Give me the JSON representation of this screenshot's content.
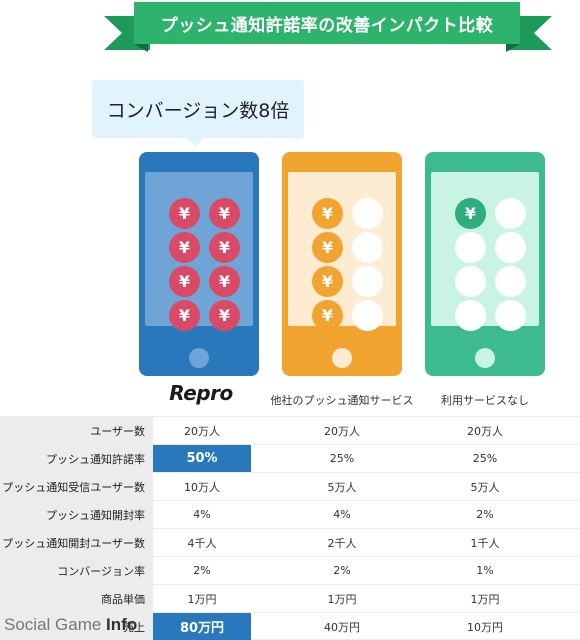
{
  "title": "プッシュ通知許諾率の改善インパクト比較",
  "bubble": "コンバージョン数8倍",
  "coin_symbol": "¥",
  "phones": [
    {
      "label": "Repro",
      "color": "#2a78bc",
      "yen_coins": 8,
      "empty_coins": 0
    },
    {
      "label": "他社のプッシュ通知サービス",
      "color": "#f2a431",
      "yen_coins": 4,
      "empty_coins": 4
    },
    {
      "label": "利用サービスなし",
      "color": "#3dbb8e",
      "yen_coins": 1,
      "empty_coins": 7
    }
  ],
  "table": {
    "rows": [
      {
        "label": "ユーザー数",
        "repro": "20万人",
        "other": "20万人",
        "none": "20万人"
      },
      {
        "label": "プッシュ通知許諾率",
        "repro": "50%",
        "other": "25%",
        "none": "25%"
      },
      {
        "label": "プッシュ通知受信ユーザー数",
        "repro": "10万人",
        "other": "5万人",
        "none": "5万人"
      },
      {
        "label": "プッシュ通知開封率",
        "repro": "4%",
        "other": "4%",
        "none": "2%"
      },
      {
        "label": "プッシュ通知開封ユーザー数",
        "repro": "4千人",
        "other": "2千人",
        "none": "1千人"
      },
      {
        "label": "コンバージョン率",
        "repro": "2%",
        "other": "2%",
        "none": "1%"
      },
      {
        "label": "商品単価",
        "repro": "1万円",
        "other": "1万円",
        "none": "1万円"
      },
      {
        "label": "売上",
        "repro": "80万円",
        "other": "40万円",
        "none": "10万円"
      }
    ]
  },
  "watermark": {
    "prefix": "Social Game ",
    "suffix": "Info"
  },
  "colors": {
    "banner": "#2db36b",
    "highlight": "#2a78bc",
    "coin_red": "#d84a65",
    "coin_orange": "#f2a431",
    "coin_green": "#2fae7d"
  }
}
